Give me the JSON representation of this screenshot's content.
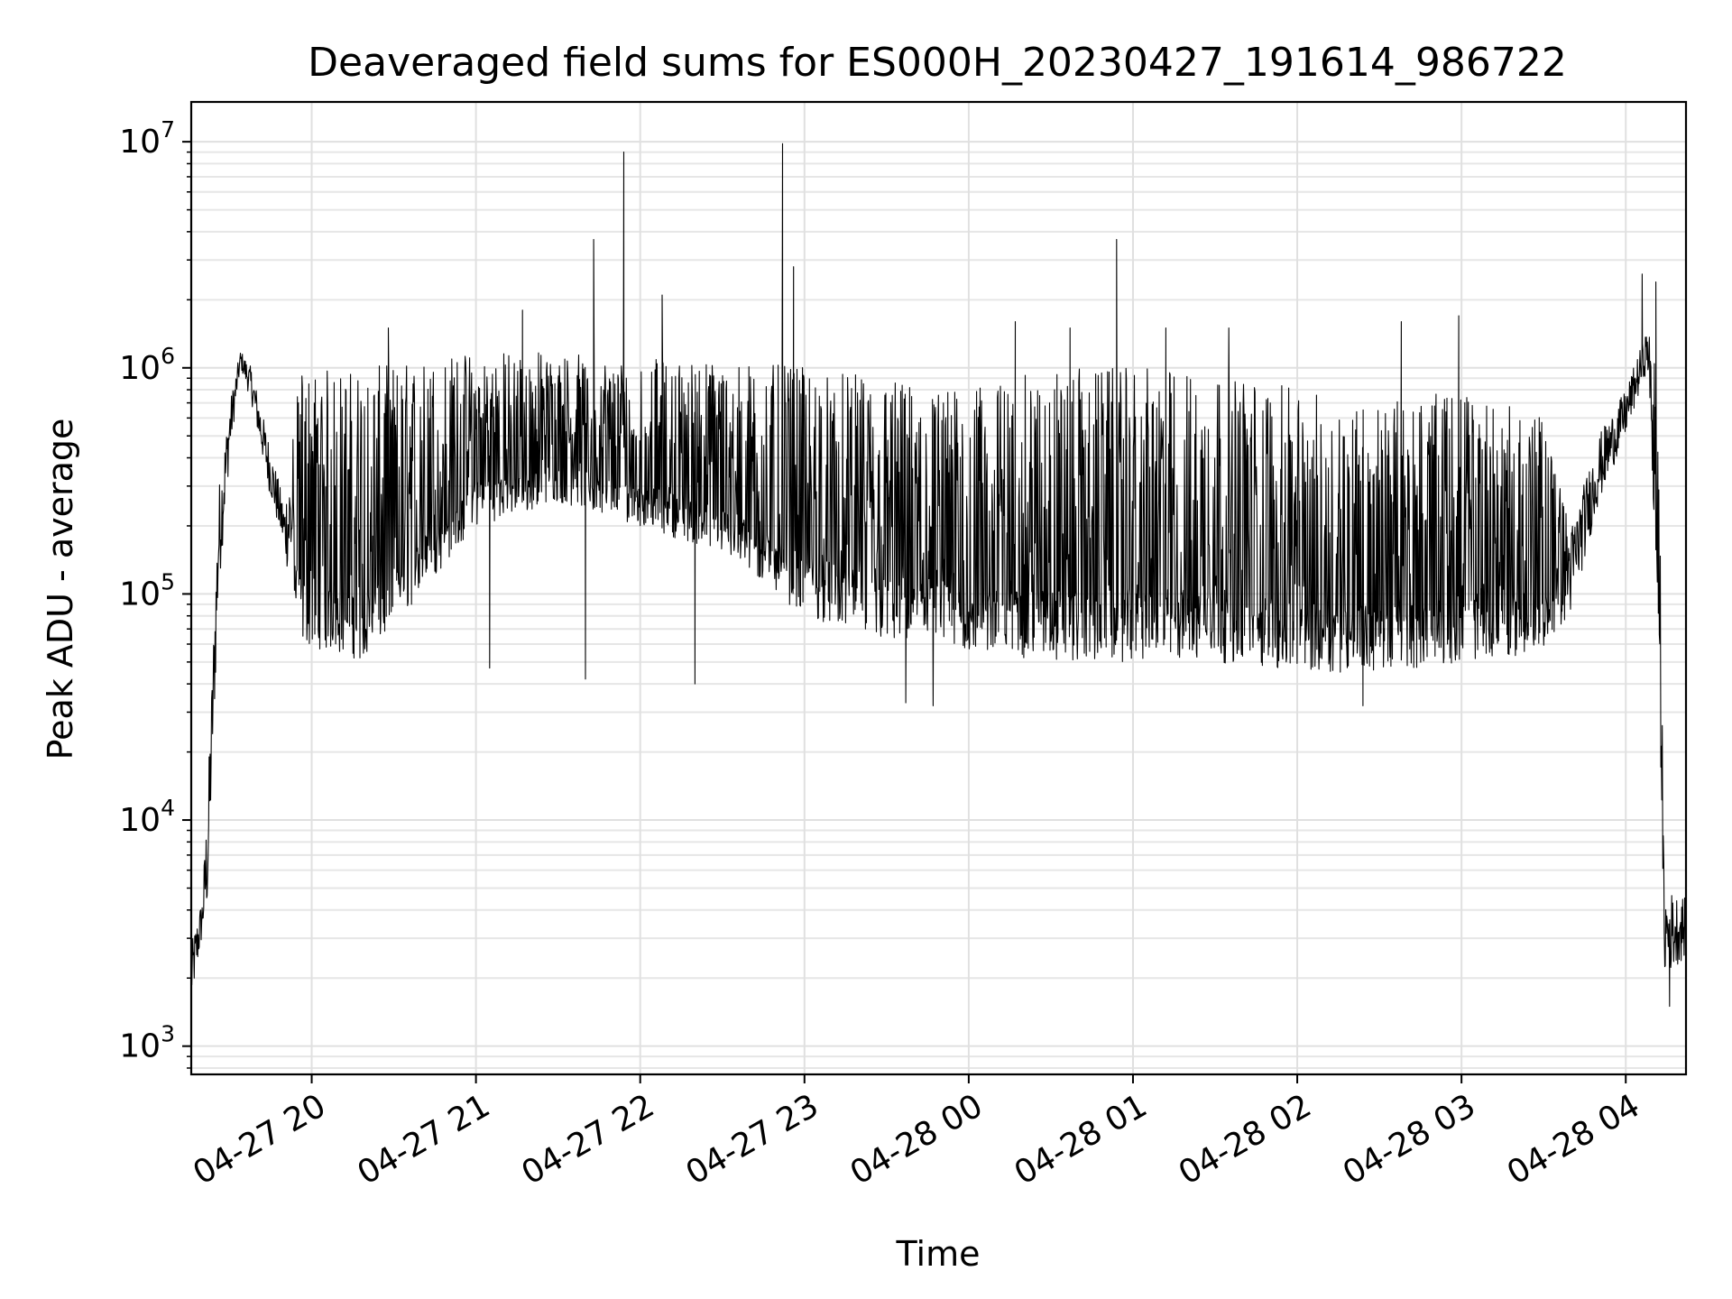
{
  "chart_data": {
    "type": "line",
    "title": "Deaveraged field sums for ES000H_20230427_191614_986722",
    "xlabel": "Time",
    "ylabel": "Peak ADU - average",
    "yscale": "log",
    "ylim": [
      750,
      15000000
    ],
    "xlim": [
      "2023-04-27 19:16",
      "2023-04-28 04:22"
    ],
    "grid": true,
    "x_ticks": [
      {
        "t": "2023-04-27 20:00",
        "label": "04-27 20"
      },
      {
        "t": "2023-04-27 21:00",
        "label": "04-27 21"
      },
      {
        "t": "2023-04-27 22:00",
        "label": "04-27 22"
      },
      {
        "t": "2023-04-27 23:00",
        "label": "04-27 23"
      },
      {
        "t": "2023-04-28 00:00",
        "label": "04-28 00"
      },
      {
        "t": "2023-04-28 01:00",
        "label": "04-28 01"
      },
      {
        "t": "2023-04-28 02:00",
        "label": "04-28 02"
      },
      {
        "t": "2023-04-28 03:00",
        "label": "04-28 03"
      },
      {
        "t": "2023-04-28 04:00",
        "label": "04-28 04"
      }
    ],
    "y_ticks": [
      {
        "value": 1000,
        "base": "10",
        "exp": "3"
      },
      {
        "value": 10000,
        "base": "10",
        "exp": "4"
      },
      {
        "value": 100000,
        "base": "10",
        "exp": "5"
      },
      {
        "value": 1000000,
        "base": "10",
        "exp": "6"
      },
      {
        "value": 10000000,
        "base": "10",
        "exp": "7"
      }
    ],
    "series": [
      {
        "color": "#000000",
        "envelope": [
          {
            "t": "2023-04-27 19:16",
            "low": 1500,
            "high": 2800
          },
          {
            "t": "2023-04-27 19:20",
            "low": 3000,
            "high": 4600
          },
          {
            "t": "2023-04-27 19:22",
            "low": 4000,
            "high": 13000
          },
          {
            "t": "2023-04-27 19:26",
            "low": 100000,
            "high": 300000
          },
          {
            "t": "2023-04-27 19:30",
            "low": 400000,
            "high": 700000
          },
          {
            "t": "2023-04-27 19:34",
            "low": 1000000,
            "high": 1200000
          },
          {
            "t": "2023-04-27 19:38",
            "low": 700000,
            "high": 1000000
          },
          {
            "t": "2023-04-27 19:44",
            "low": 300000,
            "high": 500000
          },
          {
            "t": "2023-04-27 19:50",
            "low": 150000,
            "high": 250000
          },
          {
            "t": "2023-04-27 19:56",
            "low": 60000,
            "high": 1000000
          },
          {
            "t": "2023-04-27 20:20",
            "low": 50000,
            "high": 1000000
          },
          {
            "t": "2023-04-27 20:40",
            "low": 100000,
            "high": 1100000
          },
          {
            "t": "2023-04-27 21:00",
            "low": 200000,
            "high": 1200000
          },
          {
            "t": "2023-04-27 21:30",
            "low": 250000,
            "high": 1200000
          },
          {
            "t": "2023-04-27 22:00",
            "low": 200000,
            "high": 1100000
          },
          {
            "t": "2023-04-27 22:30",
            "low": 150000,
            "high": 1100000
          },
          {
            "t": "2023-04-27 23:00",
            "low": 80000,
            "high": 1000000
          },
          {
            "t": "2023-04-27 23:30",
            "low": 60000,
            "high": 900000
          },
          {
            "t": "2023-04-28 00:00",
            "low": 55000,
            "high": 800000
          },
          {
            "t": "2023-04-28 00:30",
            "low": 50000,
            "high": 1000000
          },
          {
            "t": "2023-04-28 01:00",
            "low": 50000,
            "high": 1000000
          },
          {
            "t": "2023-04-28 01:30",
            "low": 50000,
            "high": 1000000
          },
          {
            "t": "2023-04-28 02:00",
            "low": 45000,
            "high": 800000
          },
          {
            "t": "2023-04-28 02:30",
            "low": 45000,
            "high": 700000
          },
          {
            "t": "2023-04-28 03:00",
            "low": 50000,
            "high": 800000
          },
          {
            "t": "2023-04-28 03:30",
            "low": 55000,
            "high": 600000
          },
          {
            "t": "2023-04-28 03:40",
            "low": 80000,
            "high": 200000
          },
          {
            "t": "2023-04-28 03:50",
            "low": 250000,
            "high": 500000
          },
          {
            "t": "2023-04-28 04:00",
            "low": 500000,
            "high": 800000
          },
          {
            "t": "2023-04-28 04:08",
            "low": 1000000,
            "high": 1500000
          },
          {
            "t": "2023-04-28 04:12",
            "low": 60000,
            "high": 1000000
          },
          {
            "t": "2023-04-28 04:14",
            "low": 2000,
            "high": 5000
          },
          {
            "t": "2023-04-28 04:22",
            "low": 2500,
            "high": 4500
          }
        ],
        "spikes": [
          {
            "t": "2023-04-27 20:28",
            "value": 1500000
          },
          {
            "t": "2023-04-27 21:17",
            "value": 1800000
          },
          {
            "t": "2023-04-27 21:43",
            "value": 3700000
          },
          {
            "t": "2023-04-27 21:54",
            "value": 9000000
          },
          {
            "t": "2023-04-27 22:08",
            "value": 2100000
          },
          {
            "t": "2023-04-27 22:52",
            "value": 9800000
          },
          {
            "t": "2023-04-27 22:56",
            "value": 2800000
          },
          {
            "t": "2023-04-28 00:17",
            "value": 1600000
          },
          {
            "t": "2023-04-28 00:37",
            "value": 1500000
          },
          {
            "t": "2023-04-28 00:54",
            "value": 3700000
          },
          {
            "t": "2023-04-28 01:12",
            "value": 1500000
          },
          {
            "t": "2023-04-28 01:35",
            "value": 1500000
          },
          {
            "t": "2023-04-28 02:38",
            "value": 1600000
          },
          {
            "t": "2023-04-28 02:59",
            "value": 1700000
          },
          {
            "t": "2023-04-28 04:06",
            "value": 2600000
          },
          {
            "t": "2023-04-28 04:11",
            "value": 2400000
          }
        ],
        "dips": [
          {
            "t": "2023-04-27 21:05",
            "value": 47000
          },
          {
            "t": "2023-04-27 21:40",
            "value": 42000
          },
          {
            "t": "2023-04-27 22:20",
            "value": 40000
          },
          {
            "t": "2023-04-27 23:37",
            "value": 33000
          },
          {
            "t": "2023-04-27 23:47",
            "value": 32000
          },
          {
            "t": "2023-04-28 02:24",
            "value": 32000
          },
          {
            "t": "2023-04-28 04:16",
            "value": 1500
          }
        ]
      }
    ]
  }
}
